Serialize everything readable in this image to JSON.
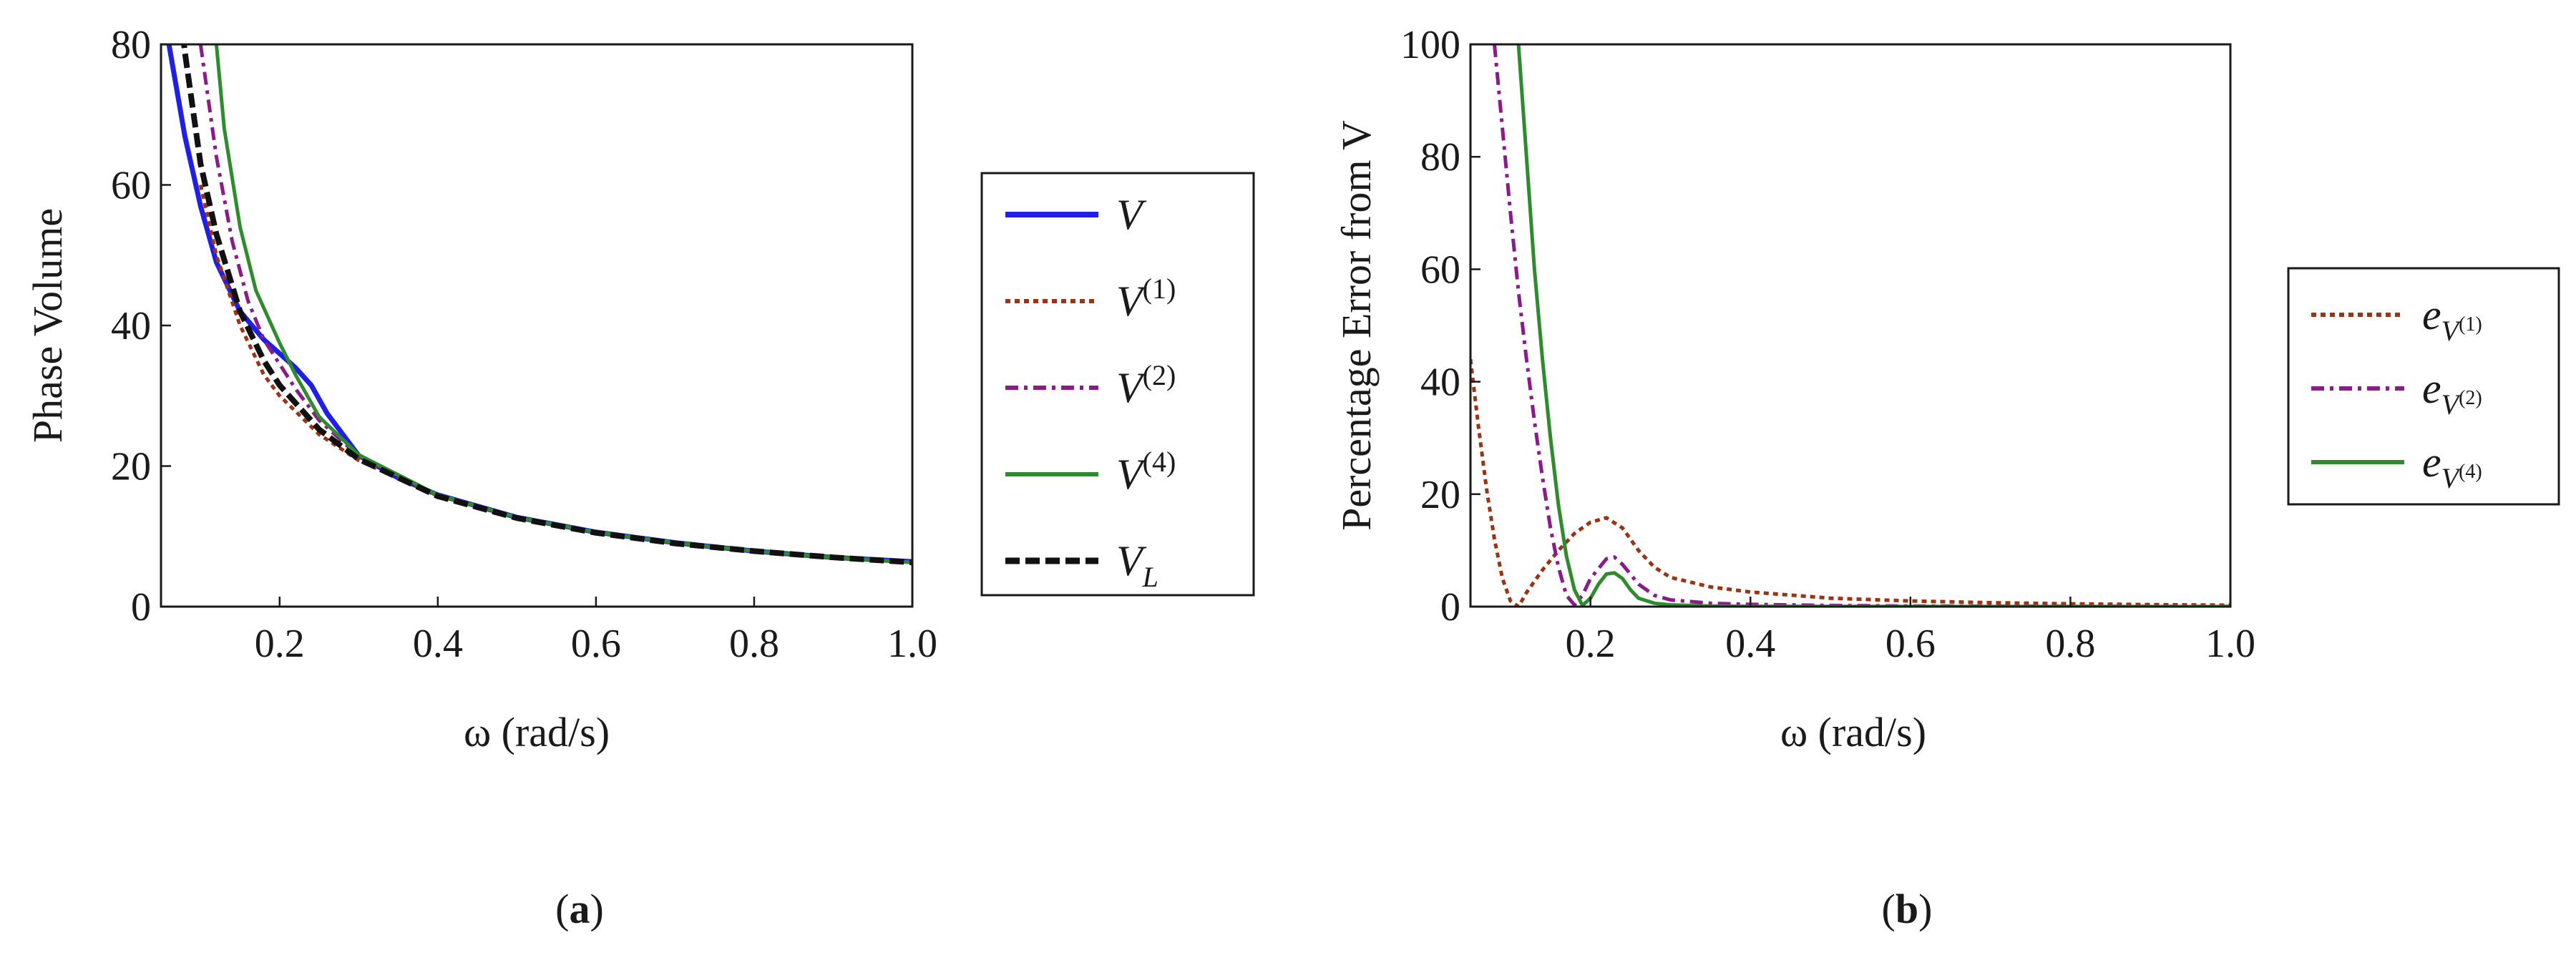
{
  "chart_data": [
    {
      "type": "line",
      "panel_label": "a",
      "caption_open": "(",
      "caption_close": ")",
      "xlabel": "ω (rad/s)",
      "ylabel": "Phase Volume",
      "xlim": [
        0.05,
        1.0
      ],
      "ylim": [
        0,
        80
      ],
      "xticks": [
        "0.2",
        "0.4",
        "0.6",
        "0.8",
        "1.0"
      ],
      "xtick_values": [
        0.2,
        0.4,
        0.6,
        0.8,
        1.0
      ],
      "yticks": [
        "0",
        "20",
        "40",
        "60",
        "80"
      ],
      "ytick_values": [
        0,
        20,
        40,
        60,
        80
      ],
      "legend_position": "right-outside",
      "series": [
        {
          "name": "V",
          "sup": "",
          "sub": "",
          "color": "#1f1fe6",
          "style": "solid-thick",
          "x": [
            0.05,
            0.06,
            0.08,
            0.1,
            0.12,
            0.15,
            0.18,
            0.2,
            0.22,
            0.24,
            0.26,
            0.28,
            0.3,
            0.35,
            0.4,
            0.5,
            0.6,
            0.7,
            0.8,
            0.9,
            1.0
          ],
          "y": [
            90,
            80,
            67,
            57,
            49,
            42,
            38,
            36,
            34,
            31.5,
            27.5,
            24.5,
            21.5,
            18.3,
            15.9,
            12.7,
            10.6,
            9.1,
            7.9,
            7.0,
            6.4
          ]
        },
        {
          "name": "V",
          "sup": "(1)",
          "sub": "",
          "color": "#9a3412",
          "style": "dotted",
          "x": [
            0.1,
            0.12,
            0.15,
            0.18,
            0.2,
            0.25,
            0.3,
            0.4,
            0.5,
            0.6,
            0.7,
            0.8,
            0.9,
            1.0
          ],
          "y": [
            60,
            50,
            40,
            33,
            30,
            24.5,
            20.8,
            15.8,
            12.7,
            10.6,
            9.1,
            7.9,
            7.0,
            6.3
          ]
        },
        {
          "name": "V",
          "sup": "(2)",
          "sub": "",
          "color": "#8b1a8b",
          "style": "dashdot",
          "x": [
            0.1,
            0.12,
            0.14,
            0.16,
            0.18,
            0.2,
            0.22,
            0.25,
            0.3,
            0.4,
            0.5,
            0.6,
            0.7,
            0.8,
            0.9,
            1.0
          ],
          "y": [
            80,
            64,
            52,
            43.5,
            38,
            34.5,
            31,
            26.5,
            21.4,
            15.9,
            12.7,
            10.6,
            9.1,
            7.9,
            7.0,
            6.3
          ]
        },
        {
          "name": "V",
          "sup": "(4)",
          "sub": "",
          "color": "#2e8b2e",
          "style": "solid",
          "x": [
            0.11,
            0.12,
            0.13,
            0.15,
            0.17,
            0.2,
            0.22,
            0.25,
            0.3,
            0.4,
            0.5,
            0.6,
            0.7,
            0.8,
            0.9,
            1.0
          ],
          "y": [
            100,
            80,
            68,
            54,
            45,
            37.5,
            33,
            27,
            21.6,
            15.9,
            12.7,
            10.6,
            9.1,
            7.9,
            7.0,
            6.3
          ]
        },
        {
          "name": "V",
          "sup": "",
          "sub": "L",
          "color": "#111111",
          "style": "dashed-thick",
          "x": [
            0.07,
            0.08,
            0.1,
            0.12,
            0.15,
            0.18,
            0.2,
            0.25,
            0.3,
            0.4,
            0.5,
            0.6,
            0.7,
            0.8,
            0.9,
            1.0
          ],
          "y": [
            90,
            79,
            63,
            53,
            42,
            35,
            31.5,
            25.2,
            21,
            15.7,
            12.6,
            10.5,
            9.0,
            7.9,
            7.0,
            6.3
          ]
        }
      ]
    },
    {
      "type": "line",
      "panel_label": "b",
      "caption_open": "(",
      "caption_close": ")",
      "xlabel": "ω (rad/s)",
      "ylabel": "Percentage Error from V",
      "xlim": [
        0.05,
        1.0
      ],
      "ylim": [
        0,
        100
      ],
      "xticks": [
        "0.2",
        "0.4",
        "0.6",
        "0.8",
        "1.0"
      ],
      "xtick_values": [
        0.2,
        0.4,
        0.6,
        0.8,
        1.0
      ],
      "yticks": [
        "0",
        "20",
        "40",
        "60",
        "80",
        "100"
      ],
      "ytick_values": [
        0,
        20,
        40,
        60,
        80,
        100
      ],
      "legend_position": "right-outside",
      "series": [
        {
          "name": "e",
          "base": "V",
          "sup": "(1)",
          "color": "#9a3412",
          "style": "dotted",
          "x": [
            0.05,
            0.06,
            0.07,
            0.08,
            0.09,
            0.1,
            0.11,
            0.12,
            0.14,
            0.16,
            0.18,
            0.2,
            0.22,
            0.24,
            0.26,
            0.28,
            0.3,
            0.35,
            0.4,
            0.5,
            0.6,
            0.7,
            0.8,
            0.9,
            1.0
          ],
          "y": [
            44,
            32,
            21,
            12,
            5,
            1,
            0,
            2.5,
            6.5,
            10,
            13,
            15,
            15.8,
            14,
            10,
            7,
            5.2,
            3.5,
            2.6,
            1.5,
            1.0,
            0.7,
            0.5,
            0.35,
            0.25
          ]
        },
        {
          "name": "e",
          "base": "V",
          "sup": "(2)",
          "color": "#8b1a8b",
          "style": "dashdot",
          "x": [
            0.08,
            0.09,
            0.1,
            0.11,
            0.12,
            0.13,
            0.14,
            0.15,
            0.16,
            0.17,
            0.18,
            0.19,
            0.2,
            0.22,
            0.23,
            0.24,
            0.26,
            0.28,
            0.3,
            0.35,
            0.4,
            0.5,
            0.6,
            0.8,
            1.0
          ],
          "y": [
            100,
            85,
            70,
            56,
            44,
            33,
            23,
            14,
            7,
            2,
            0.3,
            2,
            5,
            8.5,
            8.8,
            7.5,
            4,
            2,
            1.2,
            0.6,
            0.4,
            0.2,
            0.1,
            0.05,
            0.02
          ]
        },
        {
          "name": "e",
          "base": "V",
          "sup": "(4)",
          "color": "#2e8b2e",
          "style": "solid",
          "x": [
            0.11,
            0.12,
            0.13,
            0.14,
            0.15,
            0.16,
            0.17,
            0.18,
            0.19,
            0.2,
            0.21,
            0.22,
            0.23,
            0.24,
            0.25,
            0.26,
            0.28,
            0.3,
            0.35,
            0.4,
            0.5,
            0.6,
            0.8,
            1.0
          ],
          "y": [
            100,
            80,
            60,
            44,
            30,
            18,
            9,
            3,
            0.2,
            1.5,
            4,
            5.8,
            6,
            5,
            3,
            1.5,
            0.6,
            0.3,
            0.1,
            0.05,
            0.02,
            0.01,
            0.01,
            0.0
          ]
        }
      ]
    }
  ],
  "colors": {
    "frame": "#1a1a1a",
    "background": "#ffffff"
  }
}
